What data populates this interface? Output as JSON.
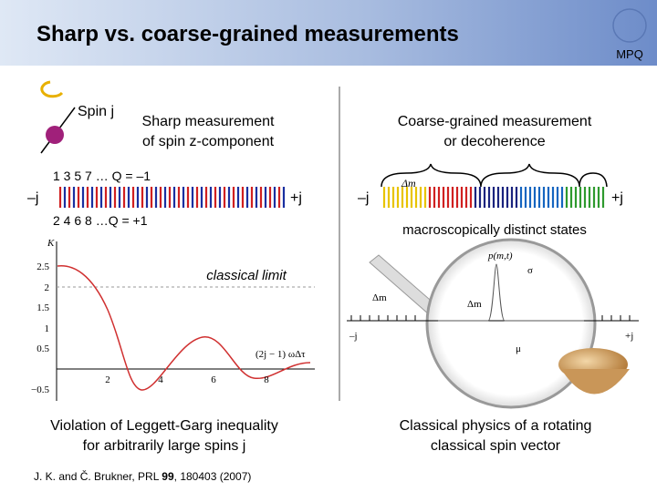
{
  "header": {
    "title": "Sharp vs. coarse-grained measurements",
    "logo": "MPQ"
  },
  "left": {
    "spin_label": "Spin j",
    "heading": [
      "Sharp measurement",
      "of spin z-component"
    ],
    "odd": "1 3 5 7 … Q = –1",
    "even": "2 4 6 8 …Q = +1",
    "minus": "–j",
    "plus": "+j",
    "conclusion": [
      "Violation of Leggett-Garg inequality",
      "for arbitrarily large spins j"
    ]
  },
  "right": {
    "heading": [
      "Coarse-grained measurement",
      "or decoherence"
    ],
    "delta": "Δm",
    "minus": "–j",
    "plus": "+j",
    "caption": "macroscopically distinct states",
    "conclusion": [
      "Classical physics of a rotating",
      "classical spin vector"
    ]
  },
  "center": {
    "label": "classical limit"
  },
  "plot": {
    "ylabel": "K",
    "yticks": [
      "2.5",
      "2",
      "1.5",
      "1",
      "0.5",
      "−0.5"
    ],
    "xticks": [
      "2",
      "4",
      "6",
      "8"
    ],
    "xlabel": "(2j − 1) ωΔτ"
  },
  "magnifier": {
    "density": "p(m,t)",
    "sigma": "σ",
    "delta_left": "Δm",
    "delta_right": "Δm",
    "minus": "–j",
    "mu": "μ",
    "plus": "+j"
  },
  "reference": {
    "before": "J. K. and Č. Brukner, PRL ",
    "volume": "99",
    "after": ", 180403 (2007)"
  }
}
